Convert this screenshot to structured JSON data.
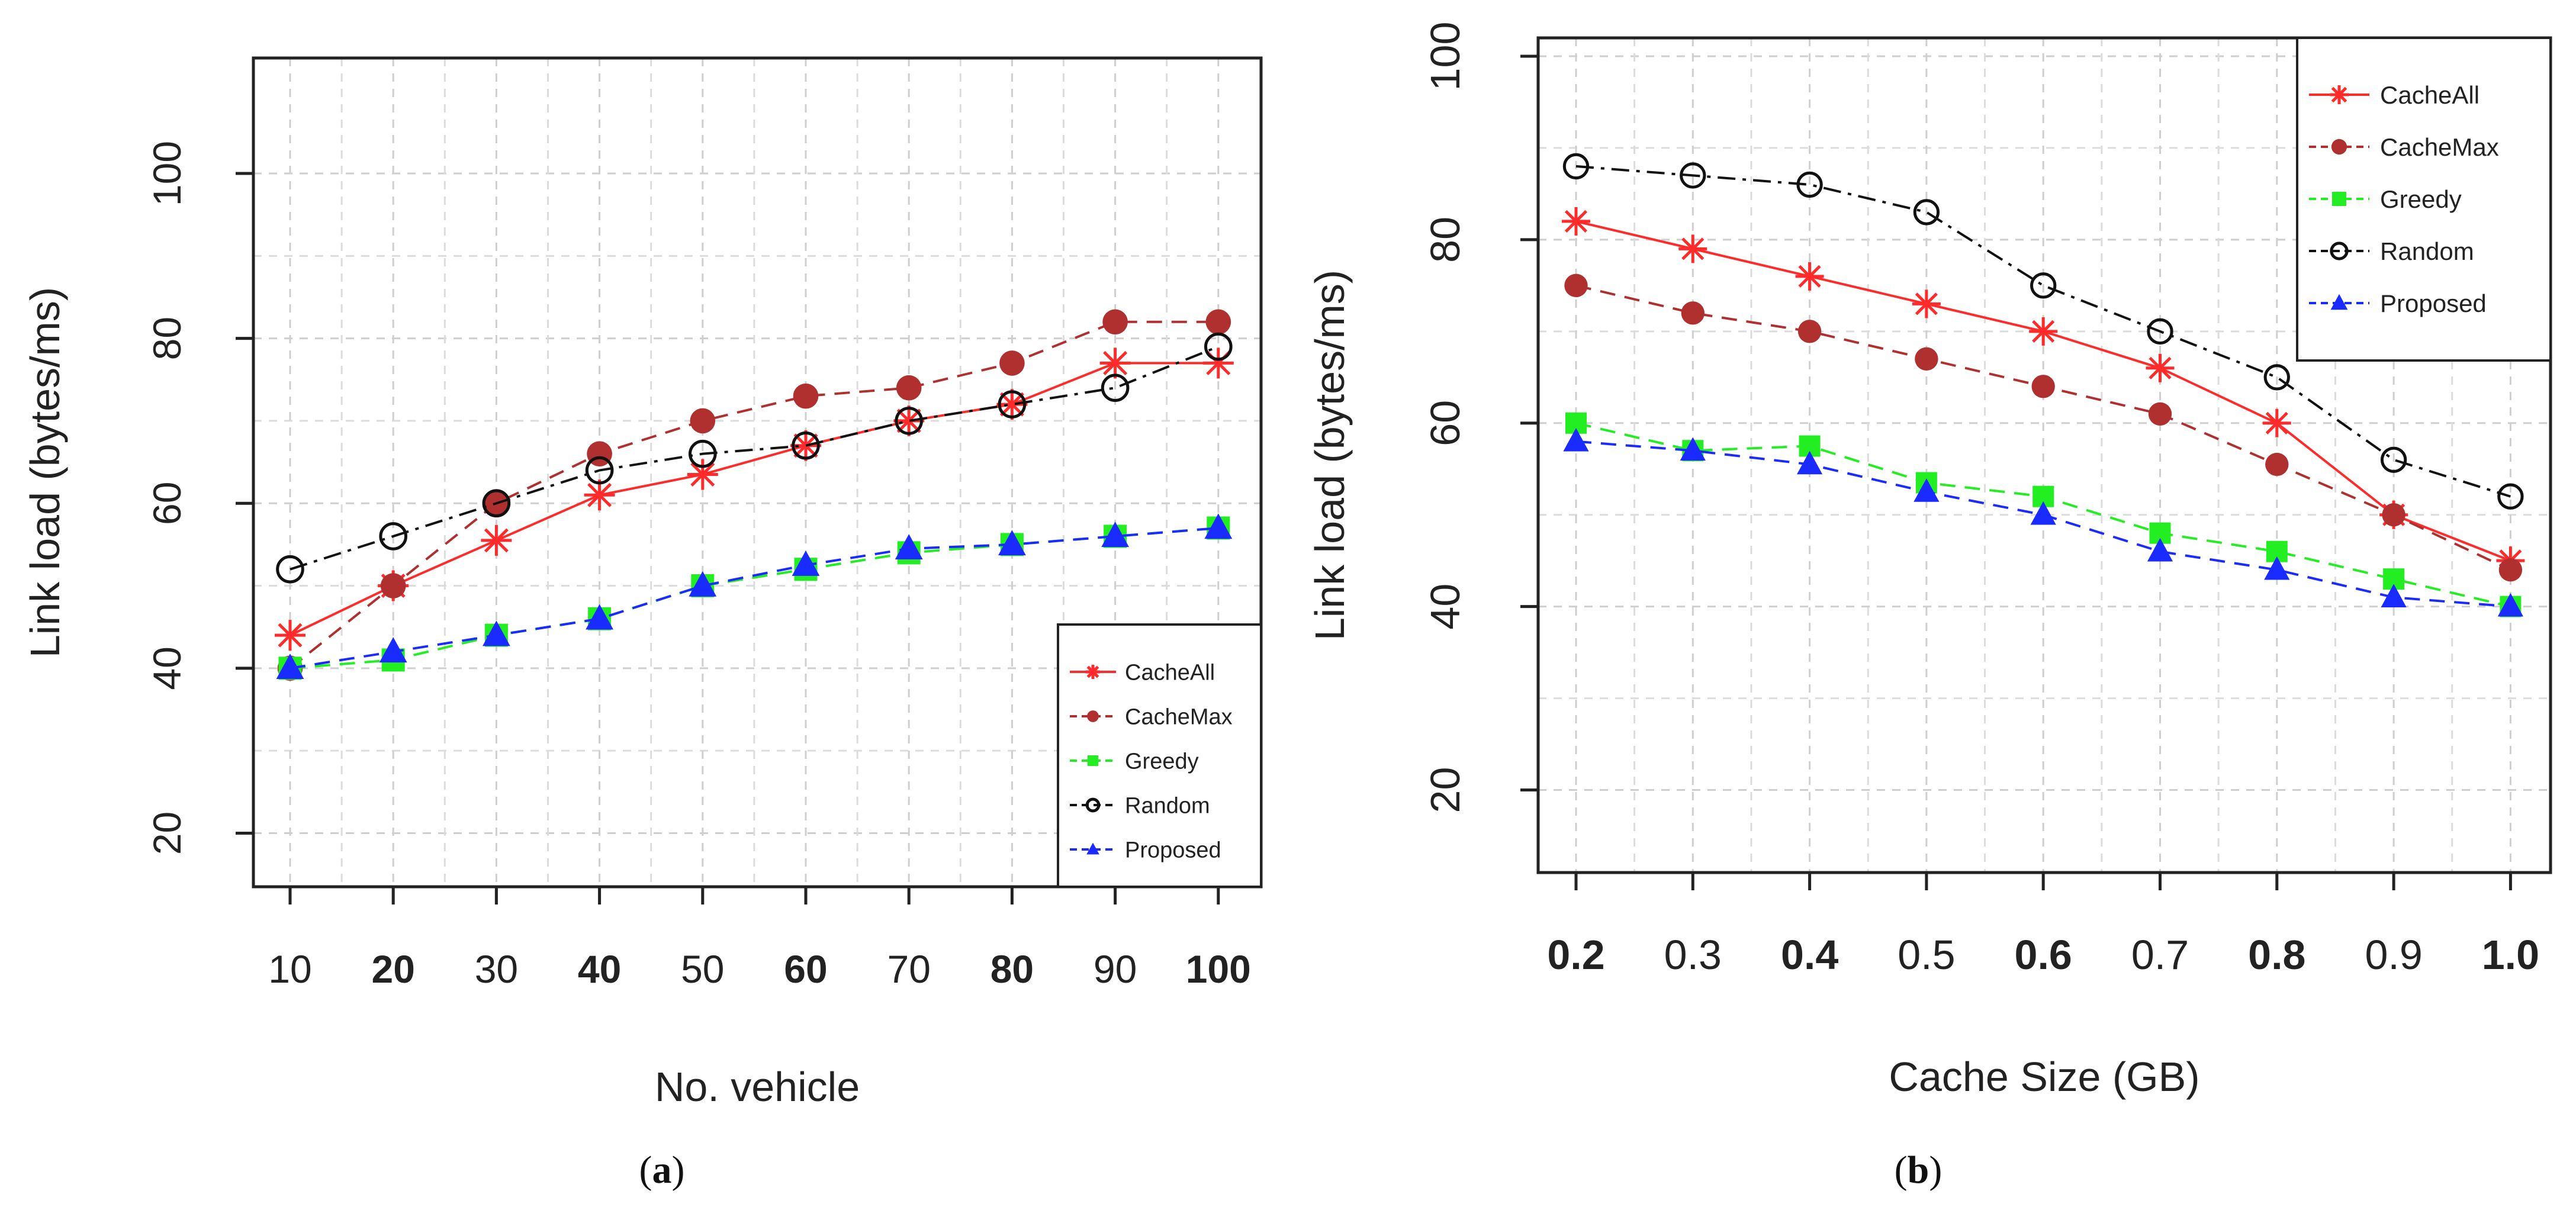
{
  "chart_data": [
    {
      "type": "line",
      "panel": "a",
      "caption_open": "(",
      "caption_letter": "a",
      "caption_close": ")",
      "xlabel": "No. vehicle",
      "ylabel": "Link load (bytes/ms)",
      "x": [
        10,
        20,
        30,
        40,
        50,
        60,
        70,
        80,
        90,
        100
      ],
      "x_tick_labels": [
        "10",
        "20",
        "30",
        "40",
        "50",
        "60",
        "70",
        "80",
        "90",
        "100"
      ],
      "ylim": [
        13.5,
        114
      ],
      "y_ticks": [
        20,
        40,
        60,
        80,
        100
      ],
      "y_tick_labels": [
        "20",
        "40",
        "60",
        "80",
        "100"
      ],
      "grid": true,
      "legend_position": "bottom-right",
      "series": [
        {
          "name": "CacheAll",
          "color": "#ff2b2b",
          "marker": "asterisk",
          "dash": "solid",
          "values": [
            44,
            50,
            55.5,
            61,
            63.5,
            67,
            70,
            72,
            77,
            77
          ]
        },
        {
          "name": "CacheMax",
          "color": "#b03030",
          "marker": "dot",
          "dash": "dashed",
          "values": [
            40,
            50,
            60,
            66,
            70,
            73,
            74,
            77,
            82,
            82
          ]
        },
        {
          "name": "Greedy",
          "color": "#22ee22",
          "marker": "square",
          "dash": "dashed",
          "values": [
            40,
            41,
            44,
            46,
            50,
            52,
            54,
            55,
            56,
            57
          ]
        },
        {
          "name": "Random",
          "color": "#111111",
          "marker": "circle",
          "dash": "dashdot",
          "values": [
            52,
            56,
            60,
            64,
            66,
            67,
            70,
            72,
            74,
            79
          ]
        },
        {
          "name": "Proposed",
          "color": "#1a2bff",
          "marker": "triangle",
          "dash": "dashed",
          "values": [
            40,
            42,
            44,
            46,
            50,
            52.5,
            54.5,
            55,
            56,
            57
          ]
        }
      ]
    },
    {
      "type": "line",
      "panel": "b",
      "caption_open": "(",
      "caption_letter": "b",
      "caption_close": ")",
      "xlabel": "Cache Size (GB)",
      "ylabel": "Link load (bytes/ms)",
      "x": [
        0.2,
        0.3,
        0.4,
        0.5,
        0.6,
        0.7,
        0.8,
        0.9,
        1.0
      ],
      "x_tick_labels": [
        "0.2",
        "0.3",
        "0.4",
        "0.5",
        "0.6",
        "0.7",
        "0.8",
        "0.9",
        "1.0"
      ],
      "ylim": [
        11,
        102
      ],
      "y_ticks": [
        20,
        40,
        60,
        80,
        100
      ],
      "y_tick_labels": [
        "20",
        "40",
        "60",
        "80",
        "100"
      ],
      "grid": true,
      "legend_position": "top-right",
      "series": [
        {
          "name": "CacheAll",
          "color": "#ff2b2b",
          "marker": "asterisk",
          "dash": "solid",
          "values": [
            82,
            79,
            76,
            73,
            70,
            66,
            60,
            50,
            45
          ]
        },
        {
          "name": "CacheMax",
          "color": "#b03030",
          "marker": "dot",
          "dash": "dashed",
          "values": [
            75,
            72,
            70,
            67,
            64,
            61,
            55.5,
            50,
            44
          ]
        },
        {
          "name": "Greedy",
          "color": "#22ee22",
          "marker": "square",
          "dash": "dashed",
          "values": [
            60,
            57,
            57.5,
            53.5,
            52,
            48,
            46,
            43,
            40
          ]
        },
        {
          "name": "Random",
          "color": "#111111",
          "marker": "circle",
          "dash": "dashdot",
          "values": [
            88,
            87,
            86,
            83,
            75,
            70,
            65,
            56,
            52
          ]
        },
        {
          "name": "Proposed",
          "color": "#1a2bff",
          "marker": "triangle",
          "dash": "dashed",
          "values": [
            58,
            57,
            55.5,
            52.5,
            50,
            46,
            44,
            41,
            40
          ]
        }
      ]
    }
  ]
}
